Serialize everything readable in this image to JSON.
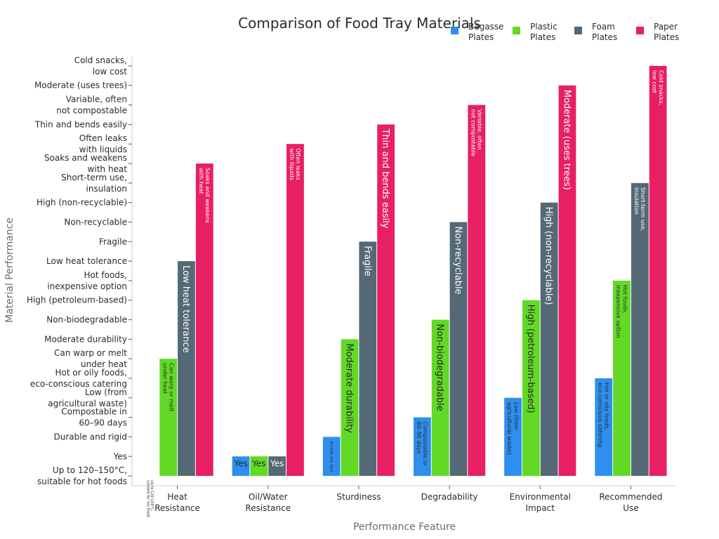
{
  "chart_data": {
    "type": "bar",
    "title": "Comparison of Food Tray Materials",
    "xlabel": "Performance Feature",
    "ylabel": "Material Performance",
    "categories": [
      "Heat\nResistance",
      "Oil/Water\nResistance",
      "Sturdiness",
      "Degradability",
      "Environmental\nImpact",
      "Recommended\nUse"
    ],
    "y_ticks": [
      "Up to 120–150°C,\nsuitable for hot foods",
      "Yes",
      "Durable and rigid",
      "Compostable in\n60–90 days",
      "Low (from\nagricultural waste)",
      "Hot or oily foods,\neco-conscious catering",
      "Can warp or melt\nunder heat",
      "Moderate durability",
      "Non-biodegradable",
      "High (petroleum-based)",
      "Hot foods,\ninexpensive option",
      "Low heat tolerance",
      "Fragile",
      "Non-recyclable",
      "High (non-recyclable)",
      "Short-term use,\ninsulation",
      "Soaks and weakens\nwith heat",
      "Often leaks\nwith liquids",
      "Thin and bends easily",
      "Variable, often\nnot compostable",
      "Moderate (uses trees)",
      "Cold snacks,\nlow cost"
    ],
    "ylim": [
      -0.5,
      21.5
    ],
    "legend_position": "top-right",
    "series": [
      {
        "name": "Bagasse\nPlates",
        "color": "#2e8fef",
        "values": [
          0,
          1,
          2,
          3,
          4,
          5
        ],
        "labels": [
          "Up to 120–150°C,\nsuitable for hot foods",
          "Yes",
          "Durable and rigid",
          "Compostable in\n60–90 days",
          "Low (from\nagricultural waste)",
          "Hot or oily foods,\neco-conscious catering"
        ]
      },
      {
        "name": "Plastic\nPlates",
        "color": "#62d927",
        "values": [
          6,
          1,
          7,
          8,
          9,
          10
        ],
        "labels": [
          "Can warp or melt\nunder heat",
          "Yes",
          "Moderate durability",
          "Non-biodegradable",
          "High (petroleum-based)",
          "Hot foods,\ninexpensive option"
        ]
      },
      {
        "name": "Foam\nPlates",
        "color": "#546975",
        "values": [
          11,
          1,
          12,
          13,
          14,
          15
        ],
        "labels": [
          "Low heat tolerance",
          "Yes",
          "Fragile",
          "Non-recyclable",
          "High (non-recyclable)",
          "Short-term use,\ninsulation"
        ]
      },
      {
        "name": "Paper\nPlates",
        "color": "#e81f64",
        "values": [
          16,
          17,
          18,
          19,
          20,
          21
        ],
        "labels": [
          "Soaks and weakens\nwith heat",
          "Often leaks\nwith liquids",
          "Thin and bends easily",
          "Variable, often\nnot compostable",
          "Moderate (uses trees)",
          "Cold snacks,\nlow cost"
        ]
      }
    ]
  }
}
